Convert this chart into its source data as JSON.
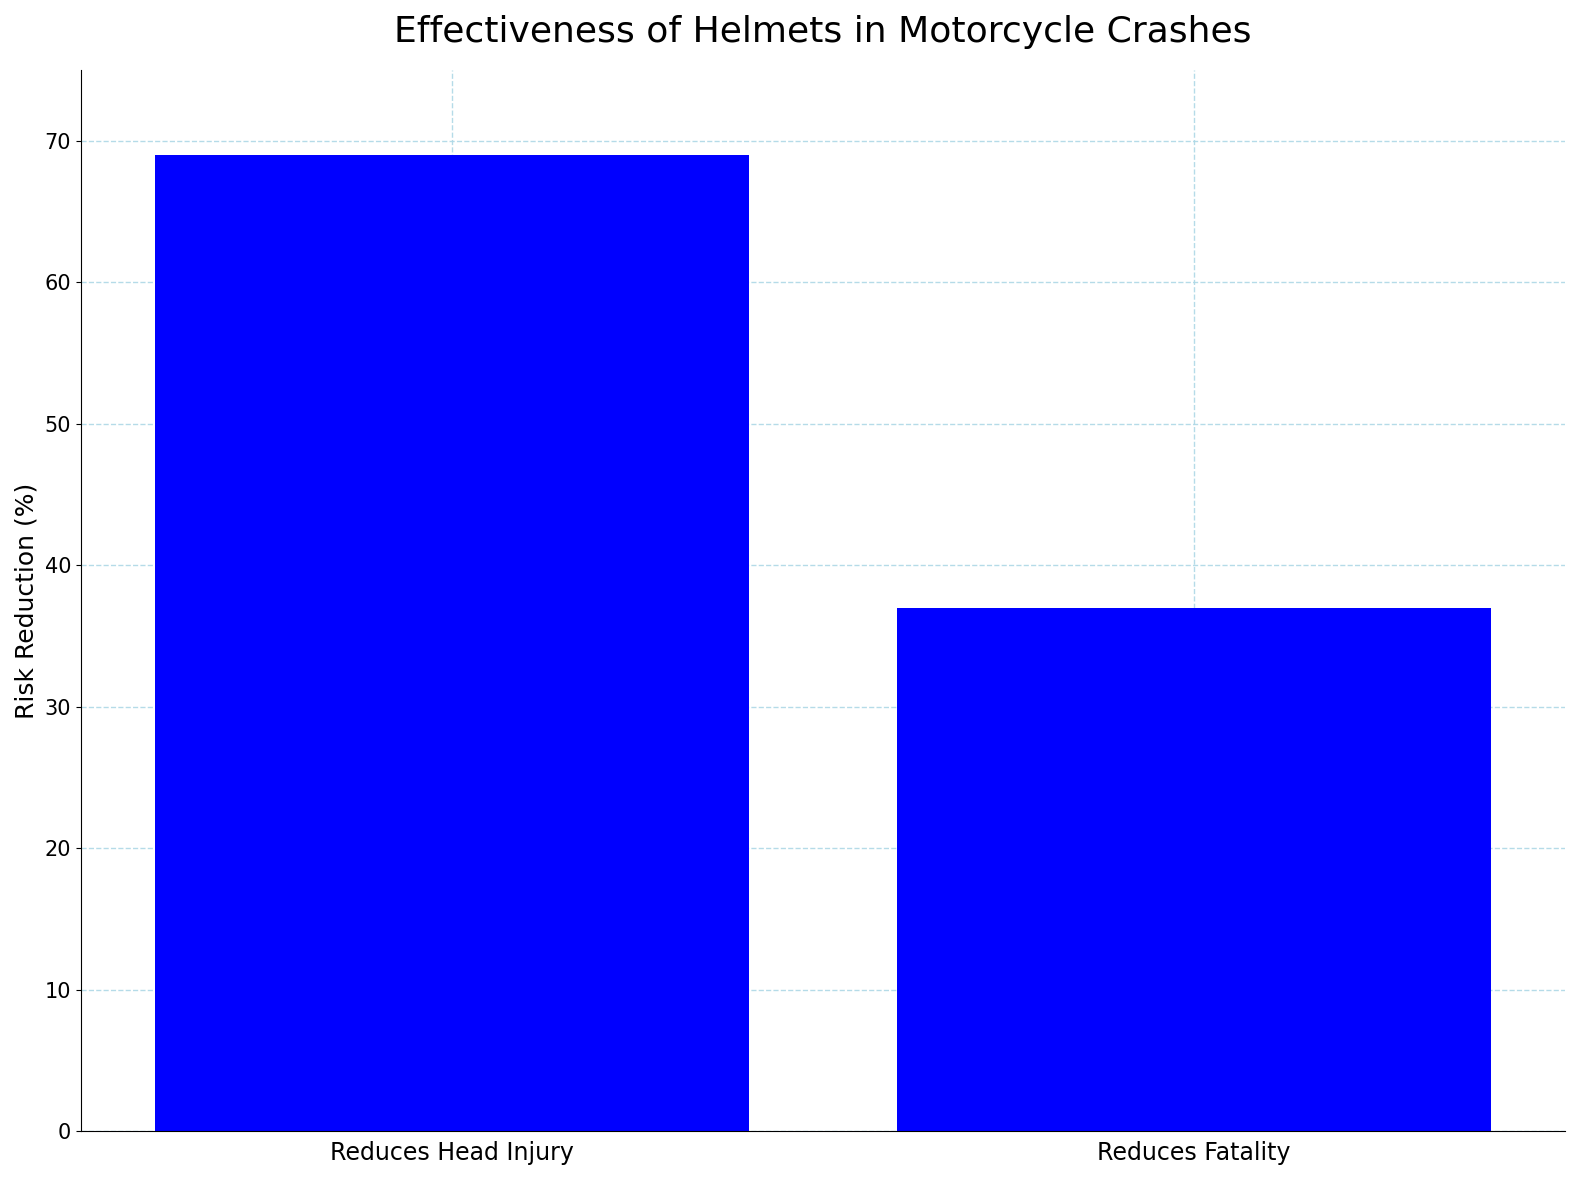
{
  "title": "Effectiveness of Helmets in Motorcycle Crashes",
  "categories": [
    "Reduces Head Injury",
    "Reduces Fatality"
  ],
  "values": [
    69,
    37
  ],
  "bar_color": "#0000FF",
  "bar_width": 0.8,
  "bar_positions": [
    0.5,
    1.5
  ],
  "ylabel": "Risk Reduction (%)",
  "ylim": [
    0,
    75
  ],
  "xlim": [
    0.0,
    2.0
  ],
  "yticks": [
    0,
    10,
    20,
    30,
    40,
    50,
    60,
    70
  ],
  "grid_color": "#add8e6",
  "grid_linestyle": "--",
  "grid_alpha": 0.9,
  "grid_linewidth": 1.0,
  "title_fontsize": 26,
  "ylabel_fontsize": 18,
  "xtick_fontsize": 17,
  "ytick_fontsize": 15,
  "background_color": "#ffffff",
  "spine_color": "#000000"
}
